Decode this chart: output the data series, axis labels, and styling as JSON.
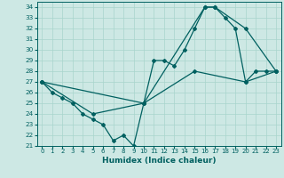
{
  "xlabel": "Humidex (Indice chaleur)",
  "bg_color": "#cde8e4",
  "grid_color": "#a8d5cc",
  "line_color": "#006060",
  "xlim": [
    -0.5,
    23.5
  ],
  "ylim": [
    21,
    34.5
  ],
  "line1_x": [
    0,
    1,
    2,
    3,
    4,
    5,
    6,
    7,
    8,
    9,
    10,
    11,
    12,
    13,
    14,
    15,
    16,
    17,
    18,
    19,
    20,
    21,
    22,
    23
  ],
  "line1_y": [
    27,
    26,
    25.5,
    25,
    24,
    23.5,
    23,
    21.5,
    22,
    21,
    25,
    29,
    29,
    28.5,
    30,
    32,
    34,
    34,
    33,
    32,
    27,
    28,
    28,
    28
  ],
  "line2_x": [
    0,
    10,
    16,
    17,
    20,
    23
  ],
  "line2_y": [
    27,
    25,
    34,
    34,
    32,
    28
  ],
  "line3_x": [
    0,
    5,
    10,
    15,
    20,
    23
  ],
  "line3_y": [
    27,
    24,
    25,
    28,
    27,
    28
  ],
  "xtick_labels": [
    "0",
    "1",
    "2",
    "3",
    "4",
    "5",
    "6",
    "7",
    "8",
    "9",
    "10",
    "11",
    "12",
    "13",
    "14",
    "15",
    "16",
    "17",
    "18",
    "19",
    "20",
    "21",
    "22",
    "23"
  ],
  "ytick_labels": [
    "21",
    "22",
    "23",
    "24",
    "25",
    "26",
    "27",
    "28",
    "29",
    "30",
    "31",
    "32",
    "33",
    "34"
  ],
  "xtick_fontsize": 5.0,
  "ytick_fontsize": 5.2,
  "xlabel_fontsize": 6.5
}
